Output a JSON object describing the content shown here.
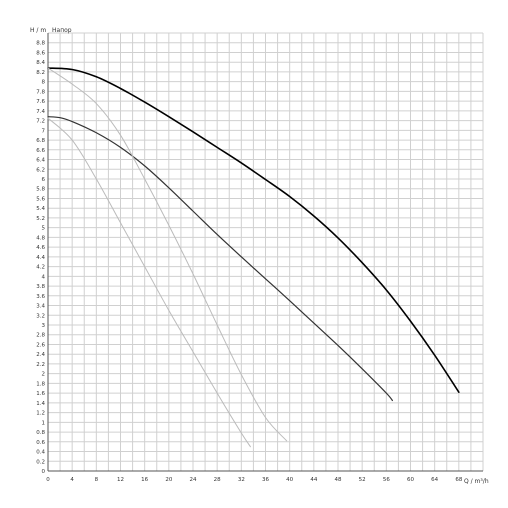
{
  "chart_data": {
    "type": "line",
    "y_axis_label": "H / m",
    "y_axis_title": "Напор",
    "x_axis_label": "Q / m³/h",
    "xlim": [
      0,
      72
    ],
    "ylim": [
      0,
      9
    ],
    "x_ticks": [
      "0",
      "4",
      "8",
      "12",
      "16",
      "20",
      "24",
      "28",
      "32",
      "36",
      "40",
      "44",
      "48",
      "52",
      "56",
      "60",
      "64",
      "68"
    ],
    "y_ticks": [
      "0",
      "0.2",
      "0.4",
      "0.6",
      "0.8",
      "1",
      "1.2",
      "1.4",
      "1.6",
      "1.8",
      "2",
      "2.2",
      "2.4",
      "2.6",
      "2.8",
      "3",
      "3.2",
      "3.4",
      "3.6",
      "3.8",
      "4",
      "4.2",
      "4.4",
      "4.6",
      "4.8",
      "5",
      "5.2",
      "5.4",
      "5.6",
      "5.8",
      "6",
      "6.2",
      "6.4",
      "6.6",
      "6.8",
      "7",
      "7.2",
      "7.4",
      "7.6",
      "7.8",
      "8",
      "8.2",
      "8.4",
      "8.6",
      "8.8"
    ],
    "grid": true,
    "series": [
      {
        "color": "#000000",
        "width": 1.6,
        "x": [
          0,
          4,
          8,
          12,
          16,
          20,
          24,
          28,
          32,
          36,
          40,
          44,
          48,
          52,
          56,
          60,
          64,
          68
        ],
        "y": [
          8.28,
          8.25,
          8.1,
          7.86,
          7.58,
          7.28,
          6.97,
          6.65,
          6.33,
          5.99,
          5.64,
          5.24,
          4.79,
          4.28,
          3.72,
          3.08,
          2.38,
          1.62
        ]
      },
      {
        "color": "#333333",
        "width": 1.2,
        "x": [
          0,
          2,
          4,
          8,
          12,
          16,
          20,
          24,
          28,
          32,
          36,
          40,
          44,
          48,
          52,
          56,
          57
        ],
        "y": [
          7.28,
          7.26,
          7.18,
          6.95,
          6.65,
          6.27,
          5.82,
          5.34,
          4.86,
          4.4,
          3.95,
          3.5,
          3.04,
          2.58,
          2.1,
          1.6,
          1.45
        ]
      },
      {
        "color": "#bbbbbb",
        "width": 1.0,
        "x": [
          0,
          4,
          8,
          12,
          16,
          20,
          24,
          28,
          32,
          36,
          39.5
        ],
        "y": [
          8.28,
          7.95,
          7.55,
          6.9,
          6.0,
          5.05,
          4.05,
          3.0,
          1.98,
          1.1,
          0.62
        ]
      },
      {
        "color": "#bbbbbb",
        "width": 1.0,
        "x": [
          0,
          4,
          8,
          12,
          16,
          20,
          24,
          28,
          32,
          33.5
        ],
        "y": [
          7.25,
          6.8,
          6.0,
          5.1,
          4.2,
          3.3,
          2.45,
          1.6,
          0.78,
          0.5
        ]
      }
    ]
  }
}
